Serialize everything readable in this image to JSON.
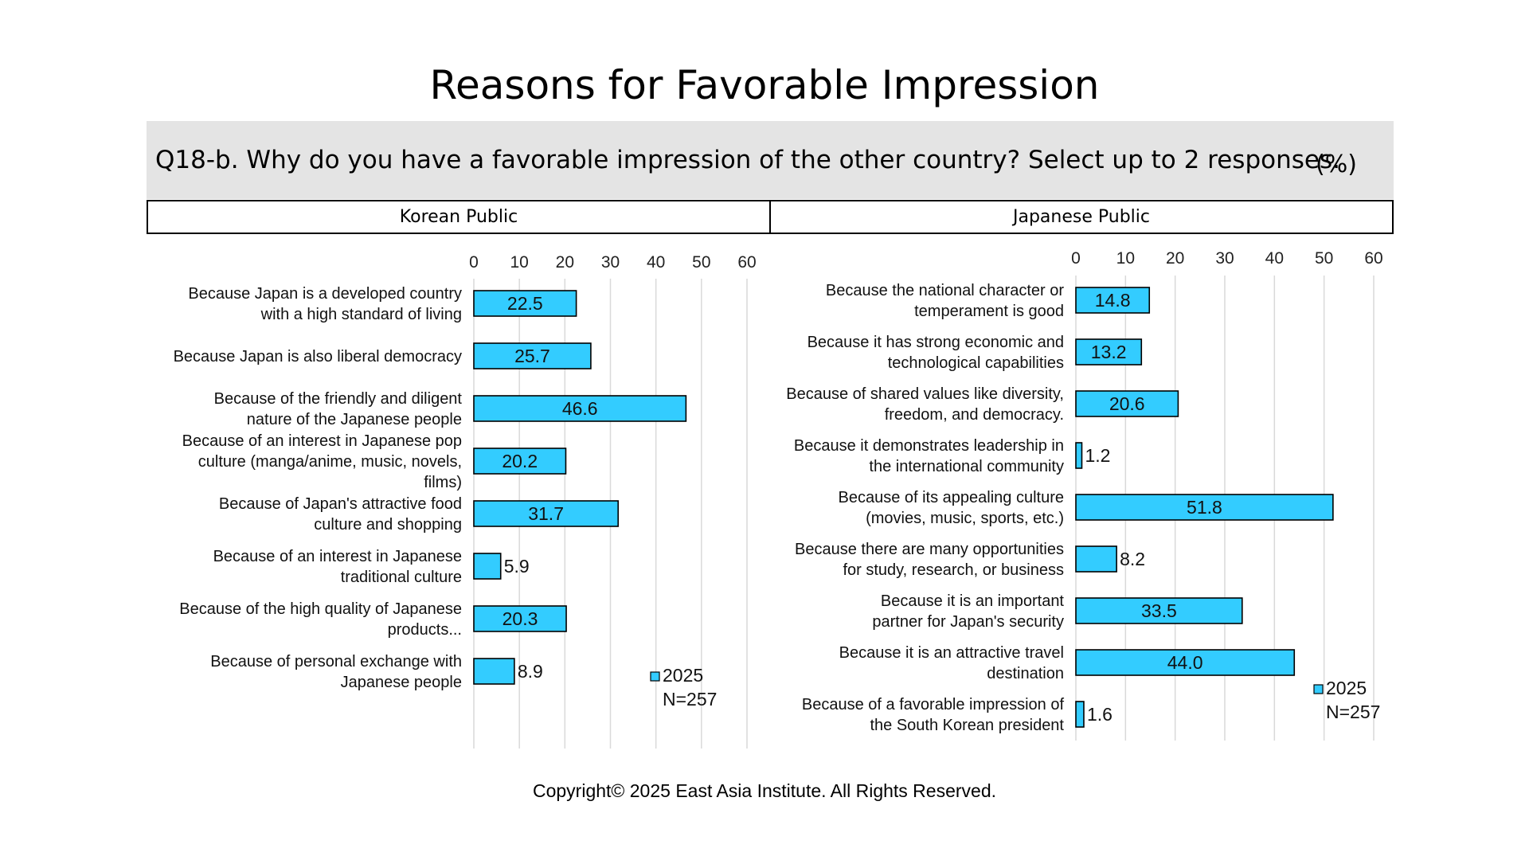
{
  "title": "Reasons for Favorable Impression",
  "question": "Q18-b. Why do you have a favorable impression of the other country? Select up to 2 responses.",
  "unit": "(%)",
  "copyright": "Copyright© 2025 East Asia Institute. All Rights Reserved.",
  "colors": {
    "bar": "#33ccff",
    "bar_stroke": "#000000",
    "grid": "#d9d9d9",
    "header_bg": "#e4e4e4"
  },
  "chart_data": [
    {
      "type": "bar",
      "orientation": "horizontal",
      "title": "Korean Public",
      "xlim": [
        0,
        60
      ],
      "xticks": [
        0,
        10,
        20,
        30,
        40,
        50,
        60
      ],
      "grid": true,
      "legend": {
        "label": "2025",
        "note": "N=257",
        "position": "bottom-right"
      },
      "categories": [
        [
          "Because Japan is a developed country",
          "with a high standard of living"
        ],
        [
          "Because Japan is also liberal democracy"
        ],
        [
          "Because of the friendly and diligent",
          "nature of the Japanese people"
        ],
        [
          "Because of an interest in Japanese pop",
          "culture (manga/anime, music, novels,",
          "films)"
        ],
        [
          "Because of Japan's attractive food",
          "culture and shopping"
        ],
        [
          "Because of an interest in Japanese",
          "traditional culture"
        ],
        [
          "Because of the high quality of Japanese",
          "products..."
        ],
        [
          "Because of personal exchange with",
          "Japanese people"
        ]
      ],
      "series": [
        {
          "name": "2025",
          "values": [
            22.5,
            25.7,
            46.6,
            20.2,
            31.7,
            5.9,
            20.3,
            8.9
          ]
        }
      ]
    },
    {
      "type": "bar",
      "orientation": "horizontal",
      "title": "Japanese Public",
      "xlim": [
        0,
        60
      ],
      "xticks": [
        0,
        10,
        20,
        30,
        40,
        50,
        60
      ],
      "grid": true,
      "legend": {
        "label": "2025",
        "note": "N=257",
        "position": "bottom-right"
      },
      "categories": [
        [
          "Because the national character or",
          "temperament is good"
        ],
        [
          "Because it has strong economic and",
          "technological capabilities"
        ],
        [
          "Because of shared values like diversity,",
          "freedom, and democracy."
        ],
        [
          "Because it demonstrates leadership in",
          "the international community"
        ],
        [
          "Because of its appealing culture",
          "(movies, music, sports, etc.)"
        ],
        [
          "Because there are many opportunities",
          "for study, research, or business"
        ],
        [
          "Because it is an important",
          "partner for Japan's security"
        ],
        [
          "Because it is an attractive travel",
          "destination"
        ],
        [
          "Because of a favorable impression of",
          "the South Korean president"
        ]
      ],
      "series": [
        {
          "name": "2025",
          "values": [
            14.8,
            13.2,
            20.6,
            1.2,
            51.8,
            8.2,
            33.5,
            44.0,
            1.6
          ]
        }
      ]
    }
  ]
}
